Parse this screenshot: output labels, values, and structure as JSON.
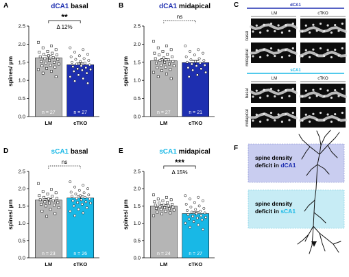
{
  "colors": {
    "dCA1": "#1e2fb0",
    "sCA1": "#18b8e6",
    "LM": "#b5b5b5",
    "dCA1_box": "#c9cdf0",
    "sCA1_box": "#c7ecf5"
  },
  "chart_data": [
    {
      "panel": "A",
      "type": "bar",
      "title_region": "dCA1",
      "title_layer": "basal",
      "title_color": "#1e2fb0",
      "ylabel": "spines/ µm",
      "ylim": [
        0,
        2.5
      ],
      "yticks": [
        "0.0",
        "0.5",
        "1.0",
        "1.5",
        "2.0",
        "2.5"
      ],
      "categories": [
        "LM",
        "cTKO"
      ],
      "values": [
        1.62,
        1.43
      ],
      "errors": [
        0.06,
        0.05
      ],
      "n_labels": [
        "n = 27",
        "n = 27"
      ],
      "bar_colors": [
        "#b5b5b5",
        "#1e2fb0"
      ],
      "points": [
        [
          2.05,
          1.95,
          1.9,
          1.85,
          1.8,
          1.78,
          1.75,
          1.72,
          1.7,
          1.68,
          1.65,
          1.63,
          1.6,
          1.58,
          1.55,
          1.52,
          1.5,
          1.48,
          1.45,
          1.42,
          1.4,
          1.37,
          1.33,
          1.3,
          1.25,
          1.2,
          1.1
        ],
        [
          1.9,
          1.85,
          1.78,
          1.72,
          1.68,
          1.65,
          1.6,
          1.58,
          1.55,
          1.52,
          1.5,
          1.48,
          1.45,
          1.43,
          1.4,
          1.38,
          1.35,
          1.32,
          1.3,
          1.28,
          1.25,
          1.2,
          1.15,
          1.1,
          1.05,
          0.98,
          0.92
        ]
      ],
      "significance": "**",
      "delta": "Δ 12%"
    },
    {
      "panel": "B",
      "type": "bar",
      "title_region": "dCA1",
      "title_layer": "midapical",
      "title_color": "#1e2fb0",
      "ylabel": "spines/ µm",
      "ylim": [
        0,
        2.5
      ],
      "yticks": [
        "0.0",
        "0.5",
        "1.0",
        "1.5",
        "2.0",
        "2.5"
      ],
      "categories": [
        "LM",
        "cTKO"
      ],
      "values": [
        1.54,
        1.49
      ],
      "errors": [
        0.06,
        0.06
      ],
      "n_labels": [
        "n = 27",
        "n = 21"
      ],
      "bar_colors": [
        "#b5b5b5",
        "#1e2fb0"
      ],
      "points": [
        [
          2.08,
          1.95,
          1.9,
          1.85,
          1.8,
          1.75,
          1.72,
          1.7,
          1.65,
          1.62,
          1.6,
          1.57,
          1.55,
          1.52,
          1.5,
          1.48,
          1.45,
          1.42,
          1.4,
          1.37,
          1.35,
          1.3,
          1.27,
          1.22,
          1.18,
          1.1,
          1.05
        ],
        [
          1.95,
          1.85,
          1.8,
          1.75,
          1.7,
          1.65,
          1.6,
          1.57,
          1.55,
          1.52,
          1.5,
          1.48,
          1.45,
          1.42,
          1.4,
          1.35,
          1.32,
          1.28,
          1.22,
          1.15,
          1.1
        ]
      ],
      "significance": "ns",
      "delta": ""
    },
    {
      "panel": "D",
      "type": "bar",
      "title_region": "sCA1",
      "title_layer": "basal",
      "title_color": "#18b8e6",
      "ylabel": "spines/ µm",
      "ylim": [
        0,
        2.5
      ],
      "yticks": [
        "0.0",
        "0.5",
        "1.0",
        "1.5",
        "2.0",
        "2.5"
      ],
      "categories": [
        "LM",
        "cTKO"
      ],
      "values": [
        1.67,
        1.73
      ],
      "errors": [
        0.05,
        0.06
      ],
      "n_labels": [
        "n = 23",
        "n = 26"
      ],
      "bar_colors": [
        "#b5b5b5",
        "#18b8e6"
      ],
      "points": [
        [
          2.15,
          1.98,
          1.92,
          1.88,
          1.85,
          1.8,
          1.78,
          1.75,
          1.72,
          1.7,
          1.68,
          1.65,
          1.62,
          1.6,
          1.58,
          1.55,
          1.52,
          1.5,
          1.45,
          1.4,
          1.35,
          1.28,
          1.2
        ],
        [
          2.2,
          2.1,
          2.05,
          2.0,
          1.95,
          1.9,
          1.88,
          1.85,
          1.82,
          1.8,
          1.78,
          1.75,
          1.72,
          1.7,
          1.68,
          1.65,
          1.62,
          1.6,
          1.58,
          1.55,
          1.5,
          1.45,
          1.4,
          1.35,
          1.3,
          1.22
        ]
      ],
      "significance": "ns",
      "delta": ""
    },
    {
      "panel": "E",
      "type": "bar",
      "title_region": "sCA1",
      "title_layer": "midapical",
      "title_color": "#18b8e6",
      "ylabel": "spines/ µm",
      "ylim": [
        0,
        2.5
      ],
      "yticks": [
        "0.0",
        "0.5",
        "1.0",
        "1.5",
        "2.0",
        "2.5"
      ],
      "categories": [
        "LM",
        "cTKO"
      ],
      "values": [
        1.5,
        1.28
      ],
      "errors": [
        0.04,
        0.05
      ],
      "n_labels": [
        "n = 24",
        "n = 27"
      ],
      "bar_colors": [
        "#b5b5b5",
        "#18b8e6"
      ],
      "points": [
        [
          1.82,
          1.75,
          1.7,
          1.68,
          1.65,
          1.62,
          1.6,
          1.58,
          1.55,
          1.53,
          1.52,
          1.5,
          1.48,
          1.47,
          1.45,
          1.43,
          1.42,
          1.4,
          1.38,
          1.35,
          1.32,
          1.3,
          1.27,
          1.22
        ],
        [
          1.8,
          1.75,
          1.7,
          1.65,
          1.6,
          1.55,
          1.5,
          1.47,
          1.43,
          1.4,
          1.37,
          1.35,
          1.32,
          1.3,
          1.28,
          1.25,
          1.22,
          1.2,
          1.17,
          1.15,
          1.12,
          1.1,
          1.05,
          1.0,
          0.95,
          0.88,
          0.82
        ]
      ],
      "significance": "***",
      "delta": "Δ 15%"
    }
  ],
  "panel_c": {
    "letter": "C",
    "top_header": "dCA1",
    "bottom_header": "sCA1",
    "col_labels": [
      "LM",
      "cTKO"
    ],
    "row_labels": [
      "basal",
      "midapical"
    ]
  },
  "panel_f": {
    "letter": "F",
    "box1_line1": "spine density",
    "box1_line2_prefix": "deficit in ",
    "box1_region": "dCA1",
    "box2_line1": "spine density",
    "box2_line2_prefix": "deficit in ",
    "box2_region": "sCA1"
  }
}
